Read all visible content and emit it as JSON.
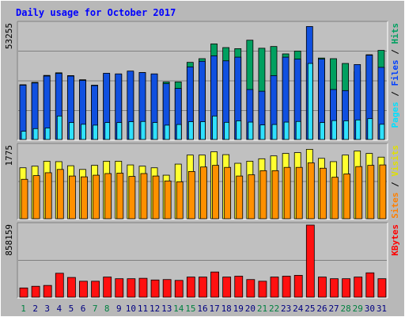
{
  "chart_data": {
    "type": "bar",
    "title": "Daily usage for October 2017",
    "categories": [
      "1",
      "2",
      "3",
      "4",
      "5",
      "6",
      "7",
      "8",
      "9",
      "10",
      "11",
      "12",
      "13",
      "14",
      "15",
      "16",
      "17",
      "18",
      "19",
      "20",
      "21",
      "22",
      "23",
      "24",
      "25",
      "26",
      "27",
      "28",
      "29",
      "30",
      "31"
    ],
    "weekend_days": [
      "1",
      "7",
      "8",
      "14",
      "15",
      "21",
      "22",
      "28",
      "29"
    ],
    "panels": [
      {
        "name": "hits-files-pages",
        "ylabel_parts": [
          "Pages",
          "Files",
          "Hits"
        ],
        "ylabel_colors": [
          "#00e0ff",
          "#0040ff",
          "#00a060"
        ],
        "max_label": "53255",
        "ymax": 53255,
        "series": [
          {
            "name": "Hits",
            "color": "#00a060",
            "values": [
              25200,
              26300,
              29500,
              30700,
              29400,
              27500,
              25000,
              30000,
              30000,
              31000,
              30800,
              30000,
              26500,
              26500,
              35500,
              37200,
              44000,
              42300,
              41800,
              45700,
              42000,
              42800,
              39400,
              40700,
              35200,
              37500,
              37200,
              35000,
              31200,
              39000,
              41000
            ]
          },
          {
            "name": "Files",
            "color": "#1050e0",
            "values": [
              25000,
              26000,
              29200,
              30400,
              29200,
              27200,
              24800,
              30500,
              30200,
              31500,
              30800,
              30200,
              25700,
              23500,
              33400,
              36000,
              38500,
              36200,
              37900,
              23000,
              22200,
              29400,
              37900,
              37000,
              52000,
              37000,
              23000,
              22500,
              34500,
              38800,
              33200
            ]
          },
          {
            "name": "Pages",
            "color": "#30e0ff",
            "values": [
              3800,
              5000,
              5300,
              10800,
              7800,
              7000,
              6600,
              7800,
              7800,
              8200,
              8300,
              7800,
              6600,
              6900,
              8200,
              8200,
              10800,
              7900,
              8600,
              8000,
              6700,
              6900,
              8000,
              8300,
              35000,
              7800,
              8700,
              8600,
              9000,
              9600,
              7000
            ]
          }
        ]
      },
      {
        "name": "visits-sites",
        "ylabel_parts": [
          "Sites",
          "Visits"
        ],
        "ylabel_colors": [
          "#ff8000",
          "#e0e000"
        ],
        "max_label": "1775",
        "ymax": 1775,
        "series": [
          {
            "name": "Visits",
            "color": "#ffff30",
            "values": [
              1240,
              1280,
              1400,
              1390,
              1290,
              1200,
              1300,
              1400,
              1400,
              1310,
              1280,
              1240,
              1060,
              1330,
              1550,
              1550,
              1630,
              1560,
              1350,
              1400,
              1460,
              1530,
              1590,
              1610,
              1690,
              1470,
              1390,
              1550,
              1650,
              1590,
              1500
            ]
          },
          {
            "name": "Sites",
            "color": "#ff9000",
            "values": [
              960,
              1050,
              1120,
              1200,
              1040,
              1020,
              1060,
              1100,
              1110,
              1030,
              1100,
              1040,
              920,
              900,
              1150,
              1260,
              1300,
              1250,
              1040,
              1070,
              1170,
              1170,
              1250,
              1250,
              1360,
              1230,
              1010,
              1090,
              1270,
              1300,
              1310
            ]
          }
        ]
      },
      {
        "name": "kbytes",
        "ylabel_parts": [
          "KBytes"
        ],
        "ylabel_colors": [
          "#ff0000"
        ],
        "max_label": "858159",
        "ymax": 858159,
        "series": [
          {
            "name": "KBytes",
            "color": "#ff1010",
            "values": [
              110000,
              130000,
              140000,
              285000,
              235000,
              190000,
              190000,
              240000,
              220000,
              220000,
              225000,
              205000,
              210000,
              200000,
              240000,
              240000,
              300000,
              240000,
              250000,
              210000,
              190000,
              240000,
              250000,
              260000,
              858159,
              240000,
              220000,
              220000,
              240000,
              290000,
              220000
            ]
          }
        ]
      }
    ],
    "colors": {
      "background": "#b8b8b8",
      "plot_background": "#c0c0c0",
      "grid": "#808080",
      "title": "#0000ff",
      "weekday_label": "#000080",
      "weekend_label": "#008040"
    }
  }
}
